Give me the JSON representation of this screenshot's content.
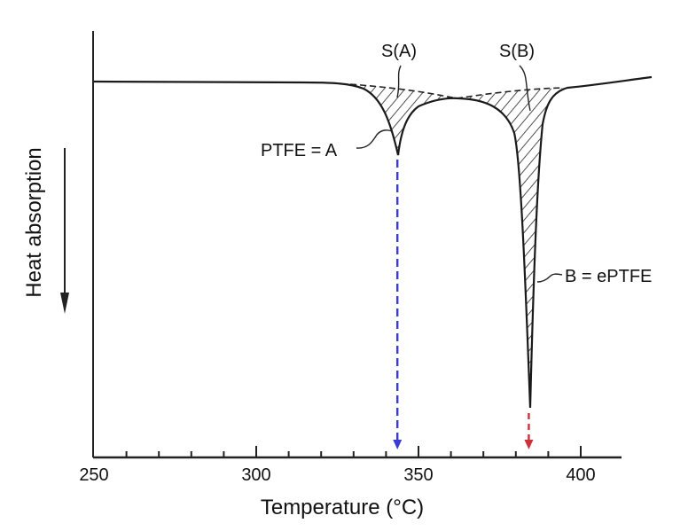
{
  "chart_data": {
    "type": "line",
    "title": "",
    "xlabel": "Temperature (°C)",
    "ylabel": "Heat absorption",
    "xlim": [
      250,
      412
    ],
    "x_ticks": [
      250,
      300,
      350,
      400
    ],
    "minor_tick_step": 10,
    "grid": false,
    "peaks": [
      {
        "name": "PTFE = A",
        "area_label": "S(A)",
        "temperature": 343.5,
        "depth": 0.22,
        "marker_color": "#3a3ad6"
      },
      {
        "name": "B = ePTFE",
        "area_label": "S(B)",
        "temperature": 384,
        "depth": 1.0,
        "marker_color": "#d0303a"
      }
    ]
  }
}
